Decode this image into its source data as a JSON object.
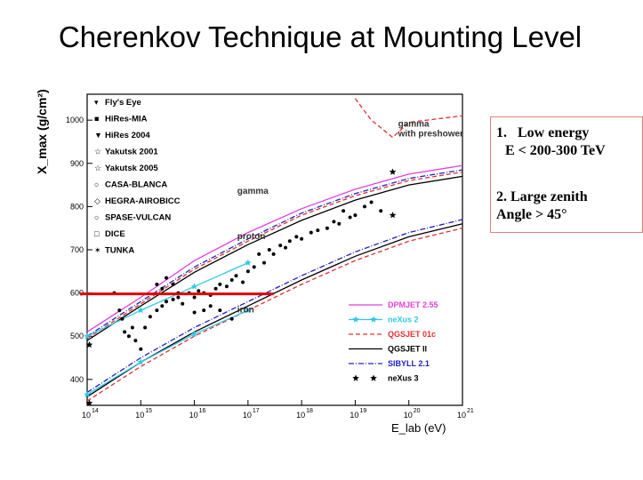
{
  "slide": {
    "title": "Cherenkov Technique at Mounting Level",
    "notes": [
      {
        "number": "1.",
        "text": "Low energy",
        "detail": "E < 200-300 TeV"
      },
      {
        "number": "2.",
        "text": "Large zenith",
        "detail": "Angle > 45°"
      }
    ]
  },
  "colors": {
    "threshold_line": "#e00000",
    "note_border": "#e08080",
    "dpmjet": "#e040e0",
    "nexus2": "#30c8e8",
    "qgsjet01c": "#e03030",
    "qgsjet2": "#000000",
    "sibyll": "#2020c0",
    "nexus3": "#000000"
  },
  "chart_data": {
    "type": "scatter",
    "ylabel": "X_max (g/cm²)",
    "xlabel": "E_lab (eV)",
    "x_scale": "log",
    "xlim": [
      100000000000000.0,
      1e+21
    ],
    "ylim": [
      340,
      1060
    ],
    "y_ticks": [
      "400",
      "500",
      "600",
      "700",
      "800",
      "900",
      "1000"
    ],
    "x_ticks": [
      {
        "base": "10",
        "exp": "14",
        "value": 100000000000000.0
      },
      {
        "base": "10",
        "exp": "15",
        "value": 1000000000000000.0
      },
      {
        "base": "10",
        "exp": "16",
        "value": 1e+16
      },
      {
        "base": "10",
        "exp": "17",
        "value": 1e+17
      },
      {
        "base": "10",
        "exp": "18",
        "value": 1e+18
      },
      {
        "base": "10",
        "exp": "19",
        "value": 1e+19
      },
      {
        "base": "10",
        "exp": "20",
        "value": 1e+20
      },
      {
        "base": "10",
        "exp": "21",
        "value": 1e+21
      }
    ],
    "experiments": [
      "Fly's Eye",
      "HiRes-MIA",
      "HiRes 2004",
      "Yakutsk 2001",
      "Yakutsk 2005",
      "CASA-BLANCA",
      "HEGRA-AIROBICC",
      "SPASE-VULCAN",
      "DICE",
      "TUNKA"
    ],
    "annotations": [
      {
        "text": "gamma with preshower",
        "x": 6.3e+19,
        "y": 985
      },
      {
        "text": "gamma",
        "x": 6.3e+16,
        "y": 830
      },
      {
        "text": "proton",
        "x": 6.3e+16,
        "y": 725
      },
      {
        "text": "iron",
        "x": 6.3e+16,
        "y": 555
      }
    ],
    "threshold_line": {
      "y": 598,
      "x_range": [
        100000000000000.0,
        3e+17
      ]
    },
    "series": [
      {
        "name": "DPMJET 2.55",
        "style": "solid",
        "color": "#e040e0",
        "points": [
          [
            100000000000000.0,
            510
          ],
          [
            1000000000000000.0,
            590
          ],
          [
            1e+16,
            675
          ],
          [
            1e+17,
            740
          ],
          [
            1e+18,
            795
          ],
          [
            1e+19,
            840
          ],
          [
            1e+20,
            875
          ],
          [
            1e+21,
            895
          ]
        ]
      },
      {
        "name": "neXus 2",
        "style": "line-star",
        "color": "#30c8e8",
        "points": [
          [
            100000000000000.0,
            500
          ],
          [
            1000000000000000.0,
            560
          ],
          [
            1e+16,
            615
          ],
          [
            1e+17,
            670
          ],
          [
            100000000000000.0,
            365
          ],
          [
            1000000000000000.0,
            440
          ],
          [
            1e+16,
            505
          ],
          [
            1e+17,
            560
          ]
        ]
      },
      {
        "name": "QGSJET 01c",
        "style": "dashed",
        "color": "#e03030",
        "points": [
          [
            100000000000000.0,
            495
          ],
          [
            1000000000000000.0,
            575
          ],
          [
            1e+16,
            655
          ],
          [
            1e+17,
            720
          ],
          [
            1e+18,
            780
          ],
          [
            1e+19,
            825
          ],
          [
            1e+20,
            860
          ],
          [
            1e+21,
            880
          ]
        ]
      },
      {
        "name": "QGSJET II",
        "style": "solid",
        "color": "#000000",
        "points": [
          [
            100000000000000.0,
            490
          ],
          [
            1000000000000000.0,
            570
          ],
          [
            1e+16,
            648
          ],
          [
            1e+17,
            712
          ],
          [
            1e+18,
            768
          ],
          [
            1e+19,
            815
          ],
          [
            1e+20,
            850
          ],
          [
            1e+21,
            870
          ]
        ]
      },
      {
        "name": "SIBYLL 2.1",
        "style": "dashdot",
        "color": "#2020c0",
        "points": [
          [
            100000000000000.0,
            500
          ],
          [
            1000000000000000.0,
            580
          ],
          [
            1e+16,
            660
          ],
          [
            1e+17,
            725
          ],
          [
            1e+18,
            785
          ],
          [
            1e+19,
            830
          ],
          [
            1e+20,
            865
          ],
          [
            1e+21,
            885
          ]
        ]
      },
      {
        "name": "neXus 3",
        "style": "star",
        "color": "#000000",
        "points": [
          [
            110000000000000.0,
            480
          ],
          [
            110000000000000.0,
            345
          ],
          [
            5e+19,
            880
          ],
          [
            5e+19,
            780
          ]
        ]
      }
    ],
    "iron_curves": [
      {
        "color": "#000000",
        "style": "solid",
        "points": [
          [
            100000000000000.0,
            360
          ],
          [
            1000000000000000.0,
            440
          ],
          [
            1e+16,
            510
          ],
          [
            1e+17,
            570
          ],
          [
            1e+18,
            630
          ],
          [
            1e+19,
            685
          ],
          [
            1e+20,
            730
          ],
          [
            1e+21,
            760
          ]
        ]
      },
      {
        "color": "#e03030",
        "style": "dashed",
        "points": [
          [
            100000000000000.0,
            350
          ],
          [
            1000000000000000.0,
            430
          ],
          [
            1e+16,
            500
          ],
          [
            1e+17,
            560
          ],
          [
            1e+18,
            620
          ],
          [
            1e+19,
            675
          ],
          [
            1e+20,
            720
          ],
          [
            1e+21,
            750
          ]
        ]
      },
      {
        "color": "#2020c0",
        "style": "dashdot",
        "points": [
          [
            100000000000000.0,
            370
          ],
          [
            1000000000000000.0,
            450
          ],
          [
            1e+16,
            520
          ],
          [
            1e+17,
            580
          ],
          [
            1e+18,
            640
          ],
          [
            1e+19,
            695
          ],
          [
            1e+20,
            740
          ],
          [
            1e+21,
            770
          ]
        ]
      }
    ],
    "gamma_curve": {
      "color": "#e03030",
      "style": "dashed",
      "points": [
        [
          1e+19,
          1050
        ],
        [
          2e+19,
          1000
        ],
        [
          5e+19,
          960
        ],
        [
          1e+20,
          995
        ],
        [
          1e+21,
          1010
        ]
      ]
    },
    "measurements": [
      [
        320000000000000.0,
        600
      ],
      [
        400000000000000.0,
        560
      ],
      [
        450000000000000.0,
        540
      ],
      [
        500000000000000.0,
        510
      ],
      [
        600000000000000.0,
        500
      ],
      [
        700000000000000.0,
        520
      ],
      [
        800000000000000.0,
        490
      ],
      [
        1000000000000000.0,
        470
      ],
      [
        1200000000000000.0,
        520
      ],
      [
        1500000000000000.0,
        545
      ],
      [
        2000000000000000.0,
        560
      ],
      [
        2500000000000000.0,
        570
      ],
      [
        3000000000000000.0,
        580
      ],
      [
        4000000000000000.0,
        585
      ],
      [
        5000000000000000.0,
        590
      ],
      [
        6000000000000000.0,
        575
      ],
      [
        8000000000000000.0,
        600
      ],
      [
        1e+16,
        590
      ],
      [
        1.2e+16,
        605
      ],
      [
        1.5e+16,
        600
      ],
      [
        2e+16,
        595
      ],
      [
        2.5e+16,
        610
      ],
      [
        3e+16,
        620
      ],
      [
        4e+16,
        615
      ],
      [
        5e+16,
        630
      ],
      [
        6e+16,
        640
      ],
      [
        8e+16,
        625
      ],
      [
        1e+17,
        650
      ],
      [
        1.3e+17,
        660
      ],
      [
        1.6e+17,
        690
      ],
      [
        2e+17,
        670
      ],
      [
        2.5e+17,
        700
      ],
      [
        3e+17,
        690
      ],
      [
        4e+17,
        710
      ],
      [
        5e+17,
        705
      ],
      [
        6e+17,
        720
      ],
      [
        8e+17,
        730
      ],
      [
        1e+18,
        725
      ],
      [
        1.5e+18,
        740
      ],
      [
        2e+18,
        745
      ],
      [
        3e+18,
        750
      ],
      [
        4e+18,
        765
      ],
      [
        5e+18,
        760
      ],
      [
        6e+18,
        790
      ],
      [
        8e+18,
        775
      ],
      [
        1e+19,
        780
      ],
      [
        1.5e+19,
        800
      ],
      [
        2e+19,
        810
      ],
      [
        3e+19,
        790
      ],
      [
        2000000000000000.0,
        620
      ],
      [
        2500000000000000.0,
        610
      ],
      [
        3000000000000000.0,
        635
      ],
      [
        4000000000000000.0,
        620
      ],
      [
        5000000000000000.0,
        600
      ],
      [
        1.5e+16,
        560
      ],
      [
        2e+16,
        570
      ],
      [
        3e+16,
        560
      ],
      [
        5e+16,
        540
      ],
      [
        1e+16,
        555
      ]
    ]
  }
}
